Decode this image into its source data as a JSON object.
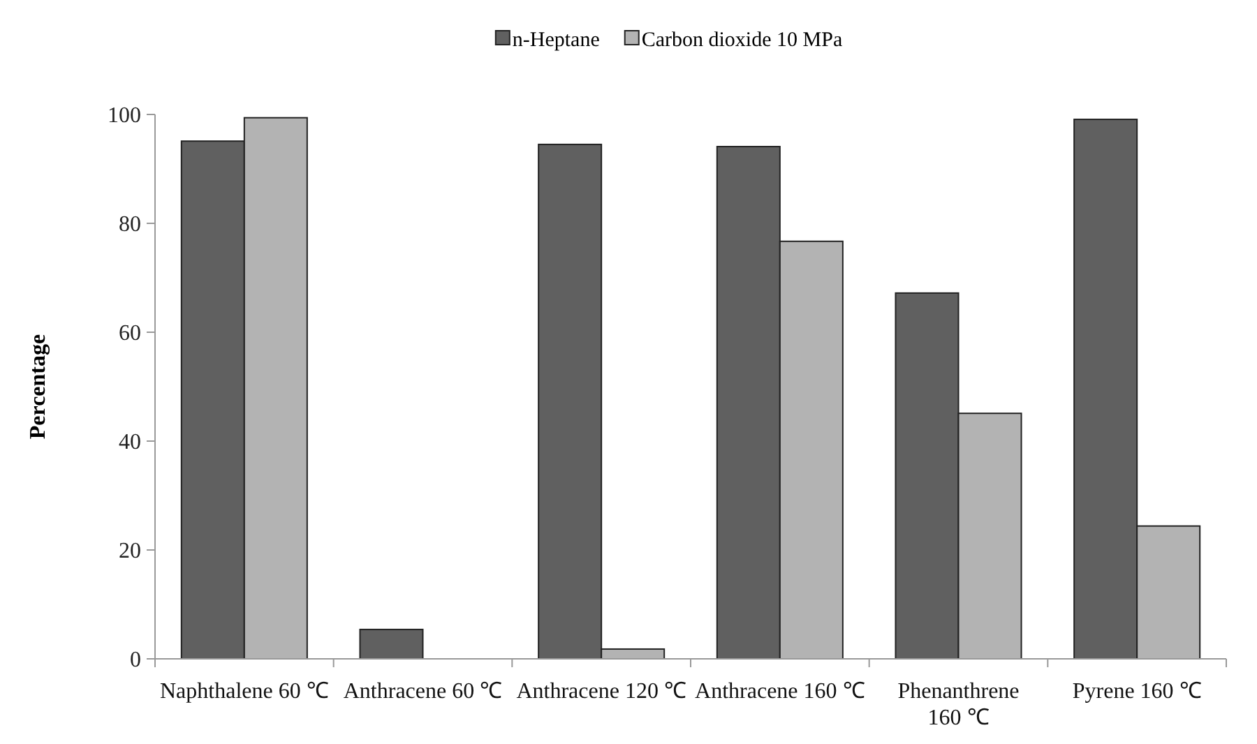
{
  "chart_data": {
    "type": "bar",
    "ylabel": "Percentage",
    "categories": [
      "Naphthalene 60 ℃",
      "Anthracene 60 ℃",
      "Anthracene 120 ℃",
      "Anthracene 160 ℃",
      "Phenanthrene 160 ℃",
      "Pyrene 160 ℃"
    ],
    "series": [
      {
        "name": "n-Heptane",
        "color": "#606060",
        "values": [
          95.1,
          5.4,
          94.5,
          94.1,
          67.2,
          99.1
        ]
      },
      {
        "name": "Carbon dioxide 10 MPa",
        "color": "#b3b3b3",
        "values": [
          99.4,
          0,
          1.8,
          76.7,
          45.1,
          24.4
        ]
      }
    ],
    "ylim": [
      0,
      100
    ],
    "yticks": [
      0,
      20,
      40,
      60,
      80,
      100
    ],
    "grid": false,
    "legend": "top"
  }
}
